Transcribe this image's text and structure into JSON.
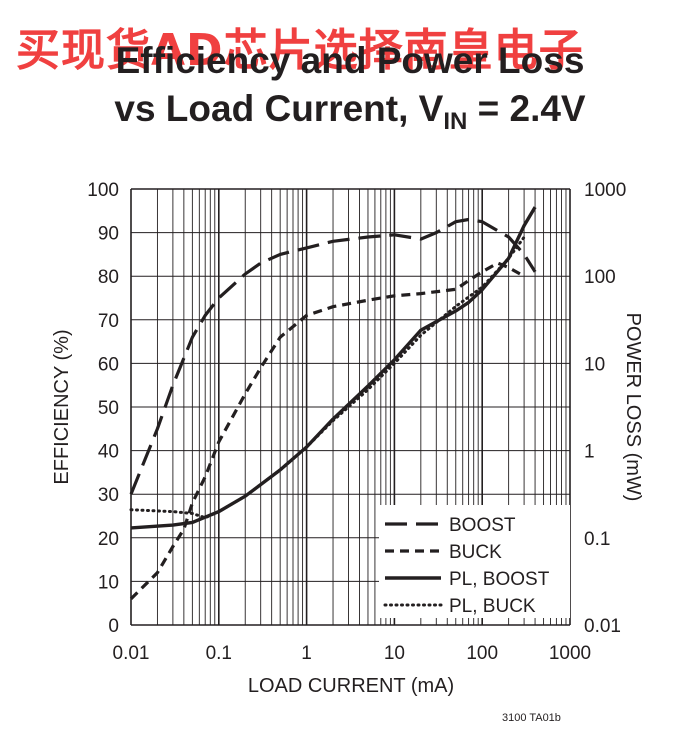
{
  "watermark": "买现货AD芯片选择南皇电子",
  "title_line1": "Efficiency and Power Loss",
  "title_line2_prefix": "vs Load Current, V",
  "title_line2_sub": "IN",
  "title_line2_suffix": " = 2.4V",
  "footer": "3100 TA01b",
  "chart_data": {
    "type": "line",
    "xlabel": "LOAD CURRENT (mA)",
    "ylabel_left": "EFFICIENCY (%)",
    "ylabel_right": "POWER LOSS (mW)",
    "x_scale": "log",
    "xlim": [
      0.01,
      1000
    ],
    "ylim_left": [
      0,
      100
    ],
    "ylim_right": [
      0.01,
      1000
    ],
    "y_right_scale": "log",
    "x_ticks": [
      "0.01",
      "0.1",
      "1",
      "10",
      "100",
      "1000"
    ],
    "y_left_ticks": [
      "0",
      "10",
      "20",
      "30",
      "40",
      "50",
      "60",
      "70",
      "80",
      "90",
      "100"
    ],
    "y_right_ticks": [
      "0.01",
      "0.1",
      "1",
      "10",
      "100",
      "1000"
    ],
    "grid": true,
    "legend_position": "bottom-right",
    "series": [
      {
        "name": "BOOST",
        "axis": "left",
        "style": "long-dash",
        "x": [
          0.01,
          0.02,
          0.03,
          0.05,
          0.07,
          0.1,
          0.2,
          0.3,
          0.5,
          1,
          2,
          5,
          10,
          20,
          30,
          50,
          70,
          100,
          200,
          300,
          400
        ],
        "y": [
          30,
          45,
          55,
          66,
          71,
          75,
          80.5,
          83,
          85,
          86.5,
          88,
          89,
          89.5,
          88.5,
          90,
          92.5,
          93,
          92.5,
          89,
          85,
          81
        ]
      },
      {
        "name": "BUCK",
        "axis": "left",
        "style": "short-dash",
        "x": [
          0.01,
          0.02,
          0.03,
          0.04,
          0.05,
          0.07,
          0.1,
          0.2,
          0.3,
          0.5,
          1,
          2,
          5,
          10,
          20,
          50,
          70,
          100,
          150,
          200,
          300
        ],
        "y": [
          6,
          12,
          18,
          22,
          28,
          34,
          42,
          53,
          59,
          66,
          71,
          73,
          74.5,
          75.5,
          76,
          77,
          79,
          81,
          83,
          82,
          80
        ]
      },
      {
        "name": "PL, BOOST",
        "axis": "right",
        "style": "solid",
        "x": [
          0.01,
          0.03,
          0.05,
          0.1,
          0.2,
          0.5,
          1,
          2,
          5,
          10,
          20,
          50,
          70,
          100,
          200,
          300,
          400
        ],
        "y": [
          0.13,
          0.14,
          0.15,
          0.2,
          0.3,
          0.6,
          1.1,
          2.3,
          5.5,
          11,
          24,
          40,
          50,
          70,
          160,
          380,
          620
        ]
      },
      {
        "name": "PL, BUCK",
        "axis": "right",
        "style": "dotted",
        "x": [
          0.01,
          0.03,
          0.05,
          0.07,
          0.1,
          0.2,
          0.5,
          1,
          2,
          5,
          10,
          20,
          50,
          100,
          200,
          300
        ],
        "y": [
          0.21,
          0.2,
          0.19,
          0.17,
          0.2,
          0.3,
          0.6,
          1.1,
          2.2,
          5,
          10,
          21,
          45,
          75,
          160,
          280
        ]
      }
    ]
  }
}
